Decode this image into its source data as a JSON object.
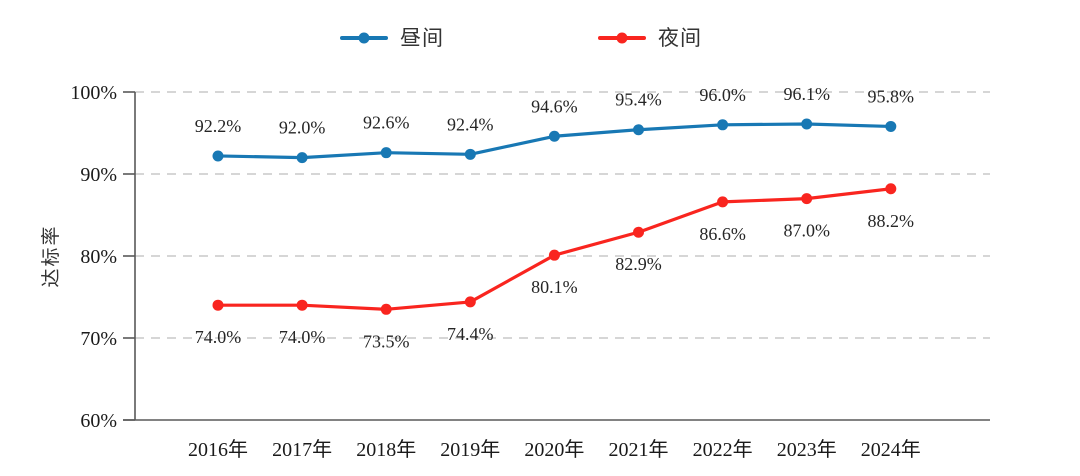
{
  "chart_data": {
    "type": "line",
    "categories": [
      "2016年",
      "2017年",
      "2018年",
      "2019年",
      "2020年",
      "2021年",
      "2022年",
      "2023年",
      "2024年"
    ],
    "series": [
      {
        "name": "昼间",
        "color": "#1878b4",
        "values": [
          92.2,
          92.0,
          92.6,
          92.4,
          94.6,
          95.4,
          96.0,
          96.1,
          95.8
        ],
        "label_position": "above"
      },
      {
        "name": "夜间",
        "color": "#f9251f",
        "values": [
          74.0,
          74.0,
          73.5,
          74.4,
          80.1,
          82.9,
          86.6,
          87.0,
          88.2
        ],
        "label_position": "below"
      }
    ],
    "title": "",
    "xlabel": "",
    "ylabel": "达标率",
    "ylim": [
      60,
      100
    ],
    "y_ticks": [
      {
        "value": 60,
        "label": "60%"
      },
      {
        "value": 70,
        "label": "70%"
      },
      {
        "value": 80,
        "label": "80%"
      },
      {
        "value": 90,
        "label": "90%"
      },
      {
        "value": 100,
        "label": "100%"
      }
    ],
    "value_suffix": "%",
    "grid": "dashed-horizontal",
    "grid_color": "#c9c9c9",
    "axis_color": "#595959",
    "legend_position": "top"
  }
}
